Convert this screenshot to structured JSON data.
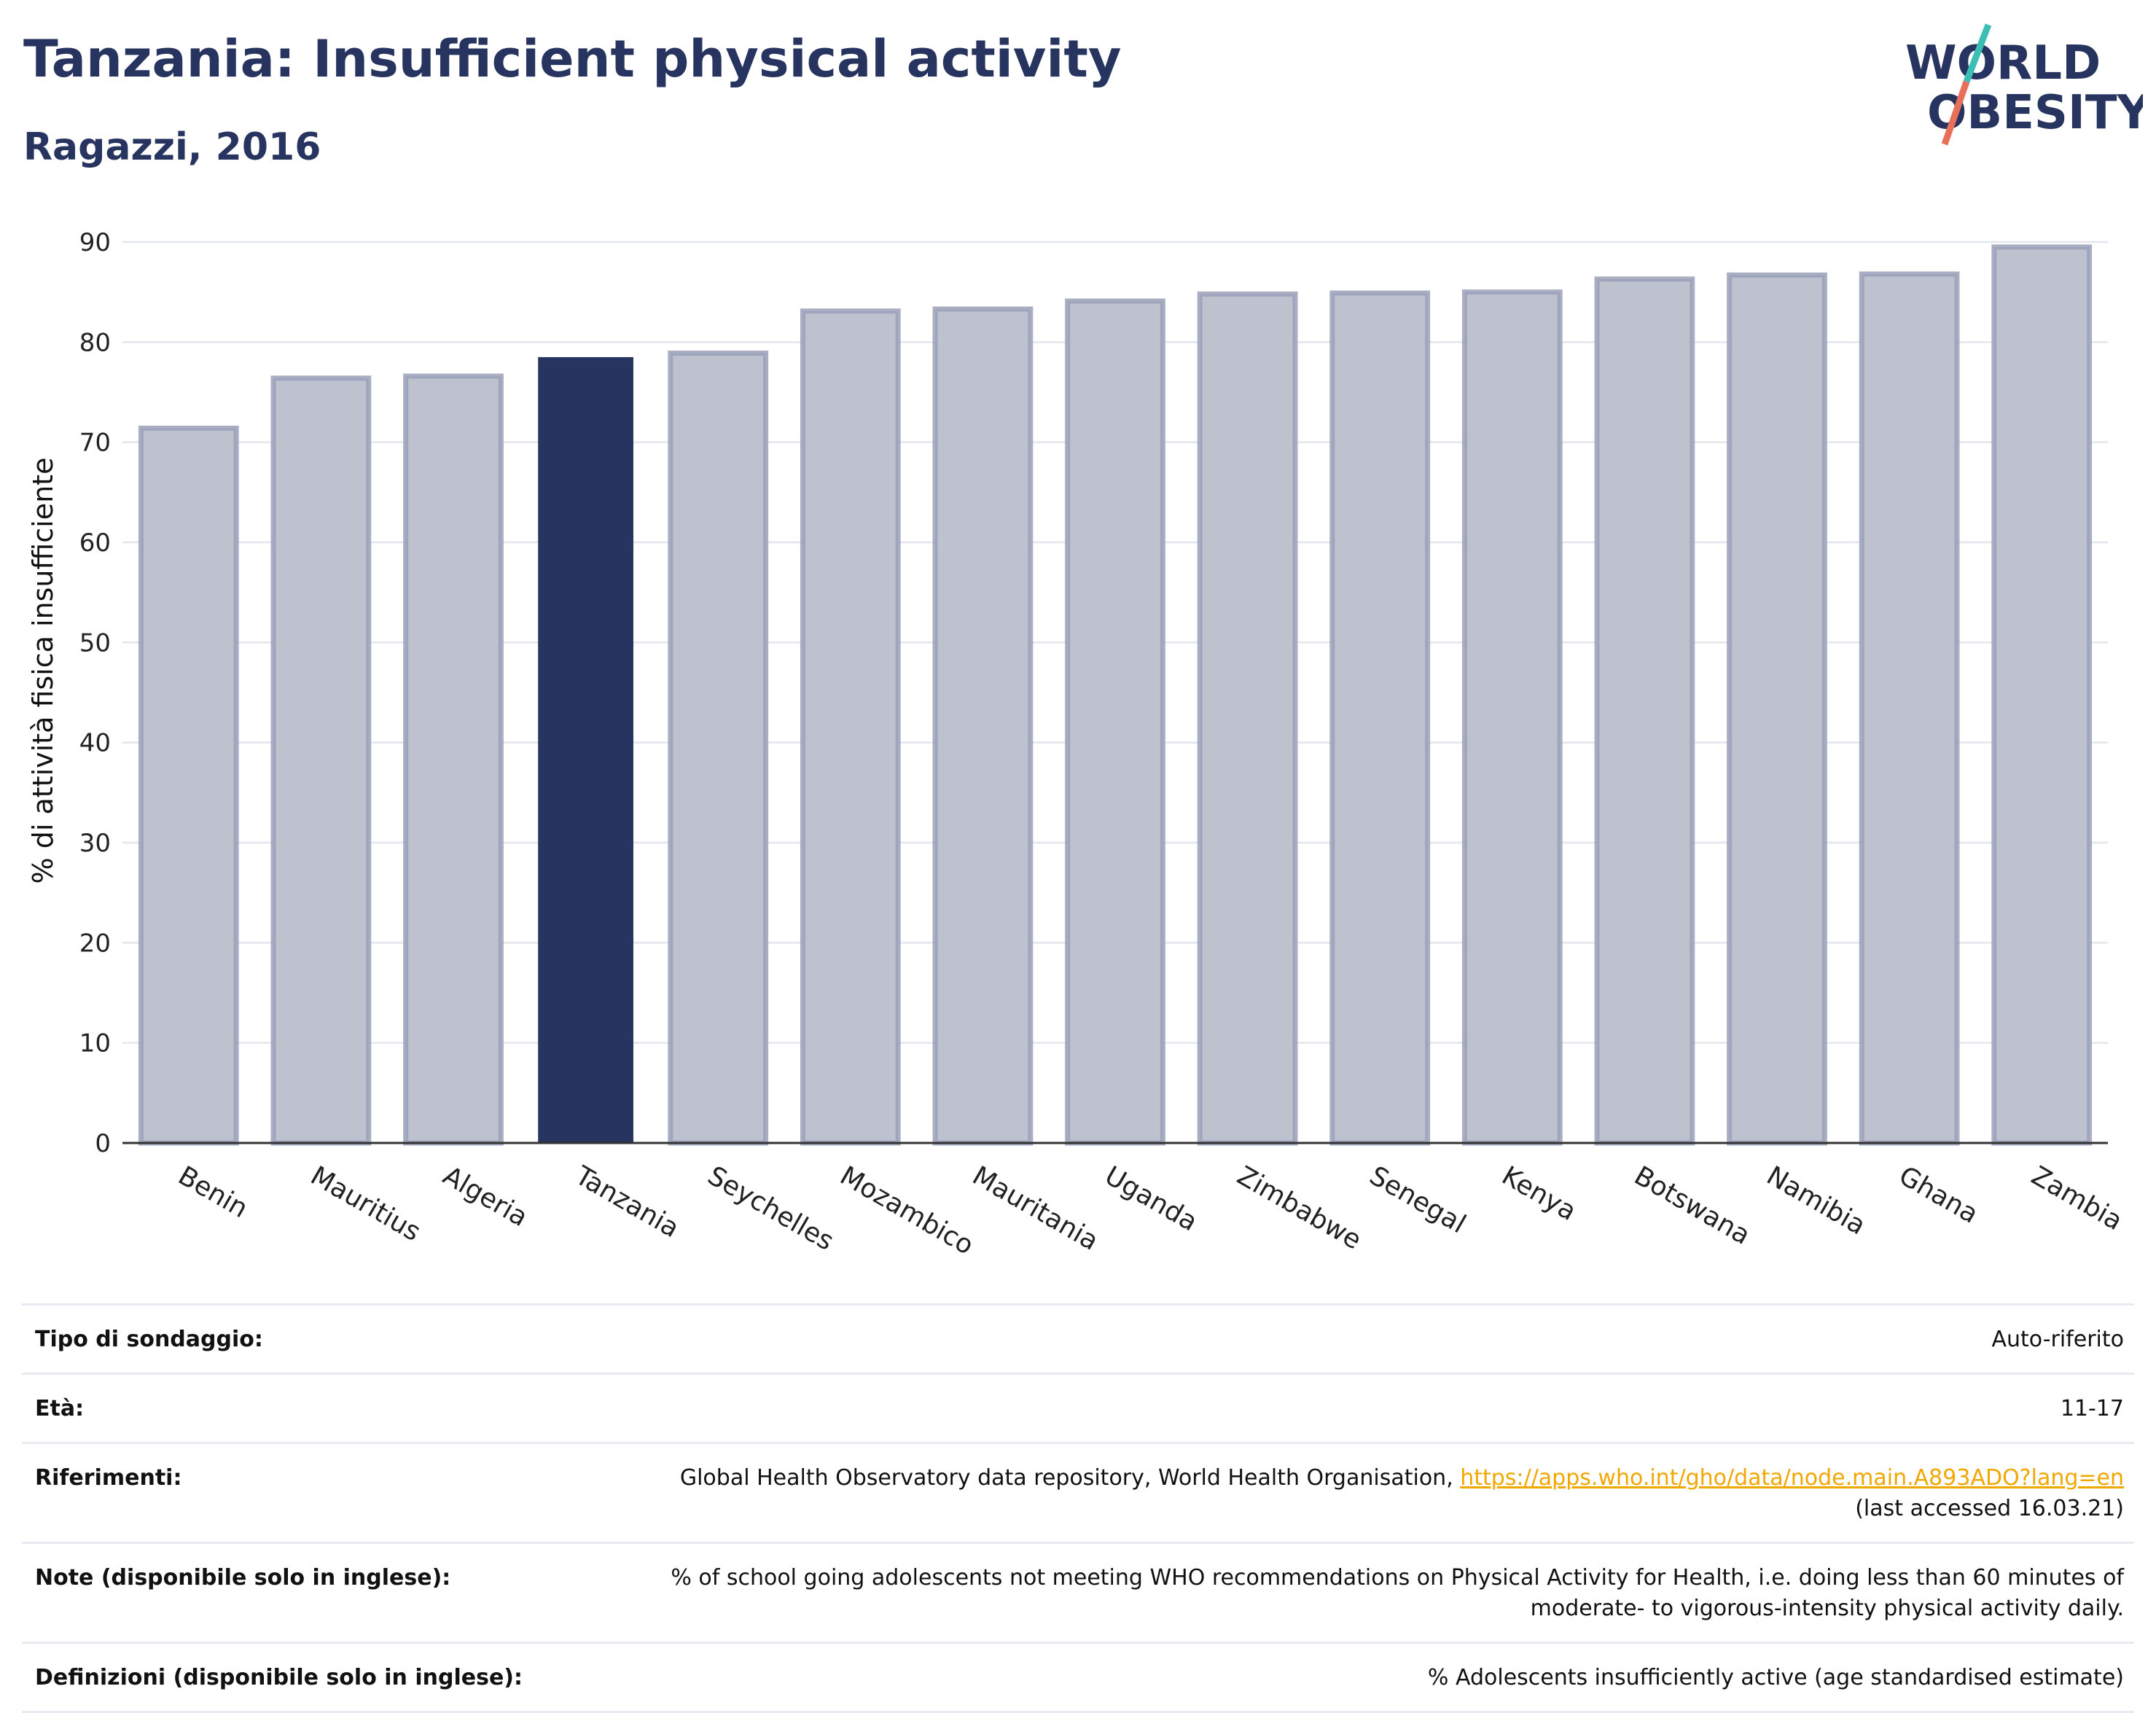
{
  "header": {
    "title": "Tanzania: Insufficient physical activity",
    "subtitle": "Ragazzi, 2016"
  },
  "logo": {
    "line1": "WORLD",
    "line2": "OBESITY",
    "colors": {
      "text": "#283460",
      "slash_top": "#3bbfb5",
      "slash_bottom": "#e8705a"
    }
  },
  "chart_data": {
    "type": "bar",
    "ylabel": "% di attività fisica insufficiente",
    "xlabel": "",
    "ylim": [
      0,
      90
    ],
    "yticks": [
      0,
      10,
      20,
      30,
      40,
      50,
      60,
      70,
      80,
      90
    ],
    "grid": true,
    "highlight": "Tanzania",
    "colors": {
      "bar": "#bec2cf",
      "bar_edge": "#9aa0b8",
      "highlight": "#283460"
    },
    "categories": [
      "Benin",
      "Mauritius",
      "Algeria",
      "Tanzania",
      "Seychelles",
      "Mozambico",
      "Mauritania",
      "Uganda",
      "Zimbabwe",
      "Senegal",
      "Kenya",
      "Botswana",
      "Namibia",
      "Ghana",
      "Zambia"
    ],
    "values": [
      71.4,
      76.4,
      76.6,
      78.5,
      78.9,
      83.1,
      83.3,
      84.1,
      84.8,
      84.9,
      85.0,
      86.3,
      86.7,
      86.8,
      89.5
    ]
  },
  "info": {
    "rows": [
      {
        "label": "Tipo di sondaggio:",
        "value": "Auto-riferito"
      },
      {
        "label": "Età:",
        "value": "11-17"
      },
      {
        "label": "Riferimenti:",
        "value": "Global Health Observatory data repository, World Health Organisation, ",
        "link": "https://apps.who.int/gho/data/node.main.A893ADO?lang=en",
        "value_after": "(last accessed 16.03.21)"
      },
      {
        "label": "Note (disponibile solo in inglese):",
        "value": "% of school going adolescents not meeting WHO recommendations on Physical Activity for Health, i.e. doing less than 60 minutes of moderate- to vigorous-intensity physical activity daily."
      },
      {
        "label": "Definizioni (disponibile solo in inglese):",
        "value": "% Adolescents insufficiently active (age standardised estimate)"
      }
    ]
  }
}
